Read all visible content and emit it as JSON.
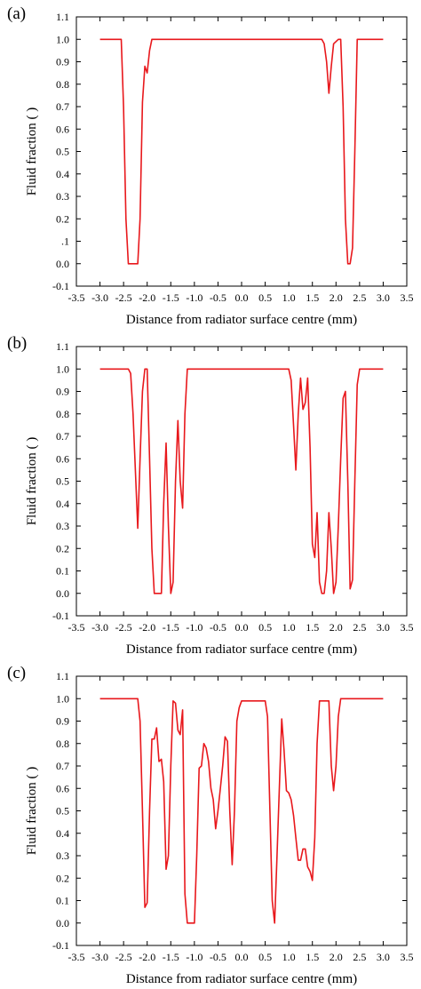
{
  "chart_data": [
    {
      "type": "line",
      "panel_label": "(a)",
      "xlabel": "Distance from radiator surface centre (mm)",
      "ylabel": "Fluid fraction ( )",
      "xlim": [
        -3.5,
        3.5
      ],
      "ylim": [
        -0.1,
        1.1
      ],
      "xticks": [
        "-3.5",
        "-3.0",
        "-2.5",
        "-2.0",
        "-1.5",
        "-1.0",
        "-0.5",
        "0.0",
        "0.5",
        "1.0",
        "1.5",
        "2.0",
        "2.5",
        "3.0",
        "3.5"
      ],
      "yticks": [
        "-0.1",
        "0.0",
        ".1",
        "0.2",
        "0.3",
        "0.4",
        "0.5",
        "0.6",
        "0.7",
        "0.8",
        "0.9",
        "1.0",
        "1.1"
      ],
      "grid": false,
      "color": "#e8181c",
      "x": [
        -3.0,
        -2.55,
        -2.5,
        -2.45,
        -2.4,
        -2.35,
        -2.3,
        -2.2,
        -2.15,
        -2.1,
        -2.05,
        -2.0,
        -1.95,
        -1.9,
        -1.8,
        1.7,
        1.75,
        1.8,
        1.85,
        1.9,
        1.95,
        2.05,
        2.1,
        2.15,
        2.2,
        2.25,
        2.3,
        2.35,
        2.4,
        2.45,
        3.0
      ],
      "y": [
        1.0,
        1.0,
        0.7,
        0.2,
        0.0,
        0.0,
        0.0,
        0.0,
        0.2,
        0.72,
        0.88,
        0.85,
        0.95,
        1.0,
        1.0,
        1.0,
        0.98,
        0.9,
        0.76,
        0.88,
        0.98,
        1.0,
        1.0,
        0.7,
        0.2,
        0.0,
        0.0,
        0.07,
        0.5,
        1.0,
        1.0
      ]
    },
    {
      "type": "line",
      "panel_label": "(b)",
      "xlabel": "Distance from radiator surface centre (mm)",
      "ylabel": "Fluid fraction ( )",
      "xlim": [
        -3.5,
        3.5
      ],
      "ylim": [
        -0.1,
        1.1
      ],
      "xticks": [
        "-3.5",
        "-3.0",
        "-2.5",
        "-2.0",
        "-1.5",
        "-1.0",
        "-0.5",
        "0.0",
        "0.5",
        "1.0",
        "1.5",
        "2.0",
        "2.5",
        "3.0",
        "3.5"
      ],
      "yticks": [
        "-0.1",
        "0.0",
        "0.1",
        "0.2",
        "0.3",
        "0.4",
        "0.5",
        "0.6",
        "0.7",
        "0.8",
        "0.9",
        "1.0",
        "1.1"
      ],
      "grid": false,
      "color": "#e8181c",
      "x": [
        -3.0,
        -2.4,
        -2.35,
        -2.3,
        -2.25,
        -2.2,
        -2.15,
        -2.1,
        -2.05,
        -2.0,
        -1.95,
        -1.9,
        -1.85,
        -1.8,
        -1.75,
        -1.7,
        -1.65,
        -1.6,
        -1.55,
        -1.5,
        -1.45,
        -1.4,
        -1.35,
        -1.3,
        -1.25,
        -1.2,
        -1.15,
        1.0,
        1.05,
        1.1,
        1.15,
        1.2,
        1.25,
        1.3,
        1.35,
        1.4,
        1.45,
        1.5,
        1.55,
        1.6,
        1.65,
        1.7,
        1.75,
        1.8,
        1.85,
        1.9,
        1.95,
        2.0,
        2.05,
        2.1,
        2.15,
        2.2,
        2.25,
        2.3,
        2.35,
        2.4,
        2.45,
        2.5,
        3.0
      ],
      "y": [
        1.0,
        1.0,
        0.98,
        0.8,
        0.55,
        0.29,
        0.6,
        0.9,
        1.0,
        1.0,
        0.6,
        0.2,
        0.0,
        0.0,
        0.0,
        0.0,
        0.4,
        0.67,
        0.3,
        0.0,
        0.05,
        0.5,
        0.77,
        0.5,
        0.38,
        0.8,
        1.0,
        1.0,
        0.95,
        0.75,
        0.55,
        0.8,
        0.96,
        0.82,
        0.85,
        0.96,
        0.65,
        0.22,
        0.16,
        0.36,
        0.05,
        0.0,
        0.0,
        0.1,
        0.36,
        0.2,
        0.0,
        0.05,
        0.3,
        0.6,
        0.87,
        0.9,
        0.5,
        0.02,
        0.06,
        0.5,
        0.93,
        1.0,
        1.0
      ]
    },
    {
      "type": "line",
      "panel_label": "(c)",
      "xlabel": "Distance from radiator surface centre (mm)",
      "ylabel": "Fluid fraction ( )",
      "xlim": [
        -3.5,
        3.5
      ],
      "ylim": [
        -0.1,
        1.1
      ],
      "xticks": [
        "-3.5",
        "-3.0",
        "-2.5",
        "-2.0",
        "-1.5",
        "-1.0",
        "-0.5",
        "0.0",
        "0.5",
        "1.0",
        "1.5",
        "2.0",
        "2.5",
        "3.0",
        "3.5"
      ],
      "yticks": [
        "-0.1",
        "0.0",
        "0.1",
        "0.2",
        "0.3",
        "0.4",
        "0.5",
        "0.6",
        "0.7",
        "0.8",
        "0.9",
        "1.0",
        "1.1"
      ],
      "grid": false,
      "color": "#e8181c",
      "x": [
        -3.0,
        -2.2,
        -2.15,
        -2.1,
        -2.05,
        -2.0,
        -1.95,
        -1.9,
        -1.85,
        -1.8,
        -1.75,
        -1.7,
        -1.65,
        -1.6,
        -1.55,
        -1.5,
        -1.45,
        -1.4,
        -1.35,
        -1.3,
        -1.25,
        -1.2,
        -1.15,
        -1.1,
        -1.0,
        -0.95,
        -0.9,
        -0.85,
        -0.8,
        -0.75,
        -0.7,
        -0.65,
        -0.6,
        -0.55,
        -0.5,
        -0.45,
        -0.4,
        -0.35,
        -0.3,
        -0.25,
        -0.2,
        -0.15,
        -0.1,
        -0.05,
        0.0,
        0.05,
        0.1,
        0.15,
        0.2,
        0.3,
        0.4,
        0.5,
        0.55,
        0.6,
        0.65,
        0.7,
        0.75,
        0.8,
        0.85,
        0.9,
        0.95,
        1.0,
        1.05,
        1.1,
        1.15,
        1.2,
        1.25,
        1.3,
        1.35,
        1.4,
        1.45,
        1.5,
        1.55,
        1.6,
        1.65,
        1.7,
        1.75,
        1.8,
        1.85,
        1.9,
        1.95,
        2.0,
        2.05,
        2.1,
        3.0
      ],
      "y": [
        1.0,
        1.0,
        0.9,
        0.5,
        0.07,
        0.09,
        0.5,
        0.82,
        0.82,
        0.87,
        0.72,
        0.73,
        0.63,
        0.24,
        0.3,
        0.7,
        0.99,
        0.98,
        0.86,
        0.84,
        0.95,
        0.13,
        0.0,
        0.0,
        0.0,
        0.3,
        0.69,
        0.7,
        0.8,
        0.78,
        0.72,
        0.6,
        0.55,
        0.42,
        0.5,
        0.6,
        0.7,
        0.83,
        0.81,
        0.5,
        0.26,
        0.5,
        0.9,
        0.96,
        0.99,
        0.99,
        0.99,
        0.99,
        0.99,
        0.99,
        0.99,
        0.99,
        0.92,
        0.5,
        0.1,
        0.0,
        0.3,
        0.6,
        0.91,
        0.77,
        0.59,
        0.58,
        0.55,
        0.48,
        0.38,
        0.28,
        0.28,
        0.33,
        0.33,
        0.25,
        0.23,
        0.19,
        0.38,
        0.8,
        0.99,
        0.99,
        0.99,
        0.99,
        0.99,
        0.7,
        0.59,
        0.7,
        0.92,
        1.0,
        1.0
      ]
    }
  ]
}
